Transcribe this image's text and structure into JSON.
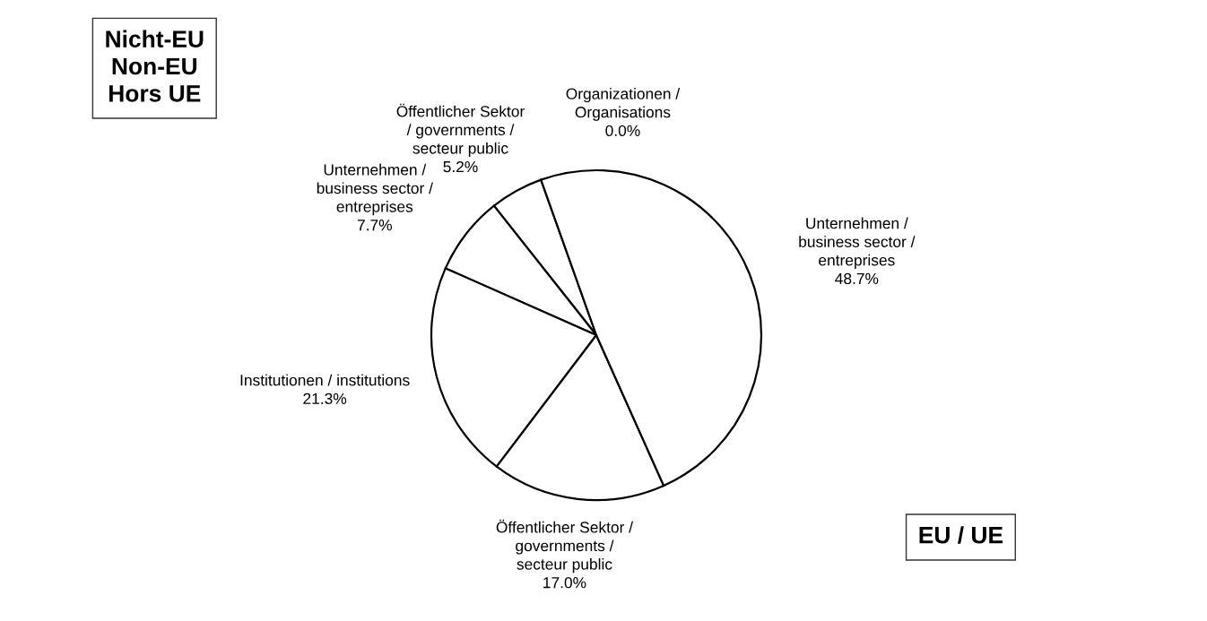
{
  "chart_data": {
    "type": "pie",
    "categories": [
      "Organizationen /\nOrganisations",
      "Öffentlicher Sektor\n/ governments /\nsecteur public",
      "Unternehmen /\nbusiness sector /\nentreprises",
      "Institutionen / institutions",
      "Öffentlicher Sektor /\ngovernments /\nsecteur public",
      "Unternehmen /\nbusiness sector /\nentreprises"
    ],
    "values": [
      0.0,
      5.2,
      7.7,
      21.3,
      17.0,
      48.7
    ],
    "value_labels": [
      "0.0%",
      "5.2%",
      "7.7%",
      "21.3%",
      "17.0%",
      "48.7%"
    ],
    "colors": [
      "#ffffff",
      "#ffffff",
      "#ffffff",
      "#ffffff",
      "#ffffff",
      "#ffffff"
    ],
    "annotations": [
      "Nicht-EU\nNon-EU\nHors UE",
      "EU / UE"
    ]
  }
}
